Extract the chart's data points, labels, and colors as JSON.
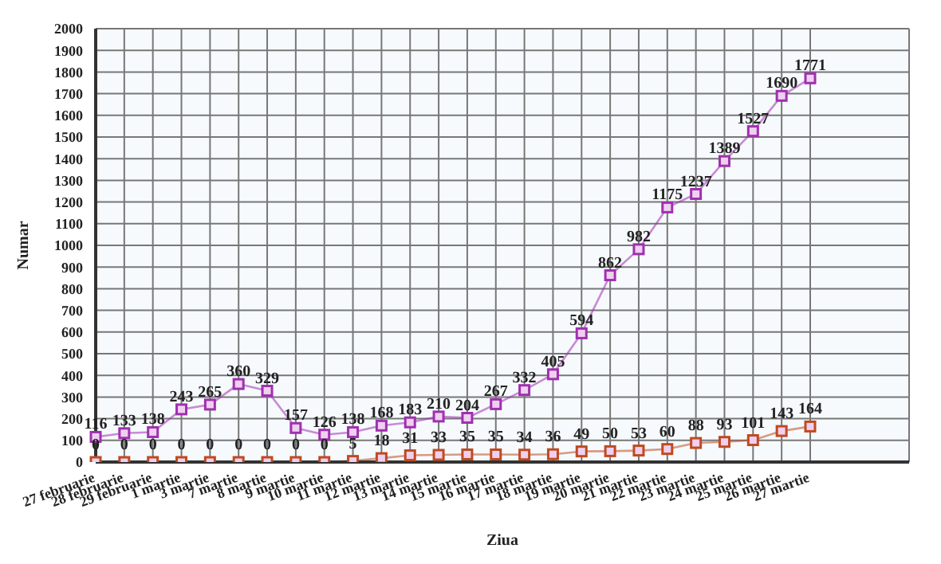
{
  "chart_data": {
    "type": "line",
    "xlabel": "Ziua",
    "ylabel": "Numar",
    "categories": [
      "27 februarie",
      "28 februarie",
      "29 februarie",
      "1 martie",
      "3 martie",
      "7 martie",
      "8 martie",
      "9 martie",
      "10 martie",
      "11 martie",
      "12 martie",
      "13 martie",
      "14 martie",
      "15 martie",
      "16 martie",
      "17 martie",
      "18 martie",
      "19 martie",
      "20 martie",
      "21 martie",
      "22 martie",
      "23 martie",
      "24 martie",
      "25 martie",
      "26 martie",
      "27 martie"
    ],
    "series": [
      {
        "color": "#a030b0",
        "values": [
          116,
          133,
          138,
          243,
          265,
          360,
          329,
          157,
          126,
          138,
          168,
          183,
          210,
          204,
          267,
          332,
          405,
          594,
          862,
          982,
          1175,
          1237,
          1389,
          1527,
          1690,
          1771
        ]
      },
      {
        "color": "#c04a20",
        "values": [
          0,
          0,
          0,
          0,
          0,
          0,
          0,
          0,
          0,
          5,
          18,
          31,
          33,
          35,
          35,
          34,
          36,
          49,
          50,
          53,
          60,
          88,
          93,
          101,
          143,
          164
        ]
      }
    ],
    "ylim": [
      0,
      2000
    ],
    "yticks": [
      0,
      100,
      200,
      300,
      400,
      500,
      600,
      700,
      800,
      900,
      1000,
      1100,
      1200,
      1300,
      1400,
      1500,
      1600,
      1700,
      1800,
      1900,
      2000
    ],
    "grid": true,
    "marker": "square",
    "data_labels": true,
    "line_style": "solid"
  }
}
